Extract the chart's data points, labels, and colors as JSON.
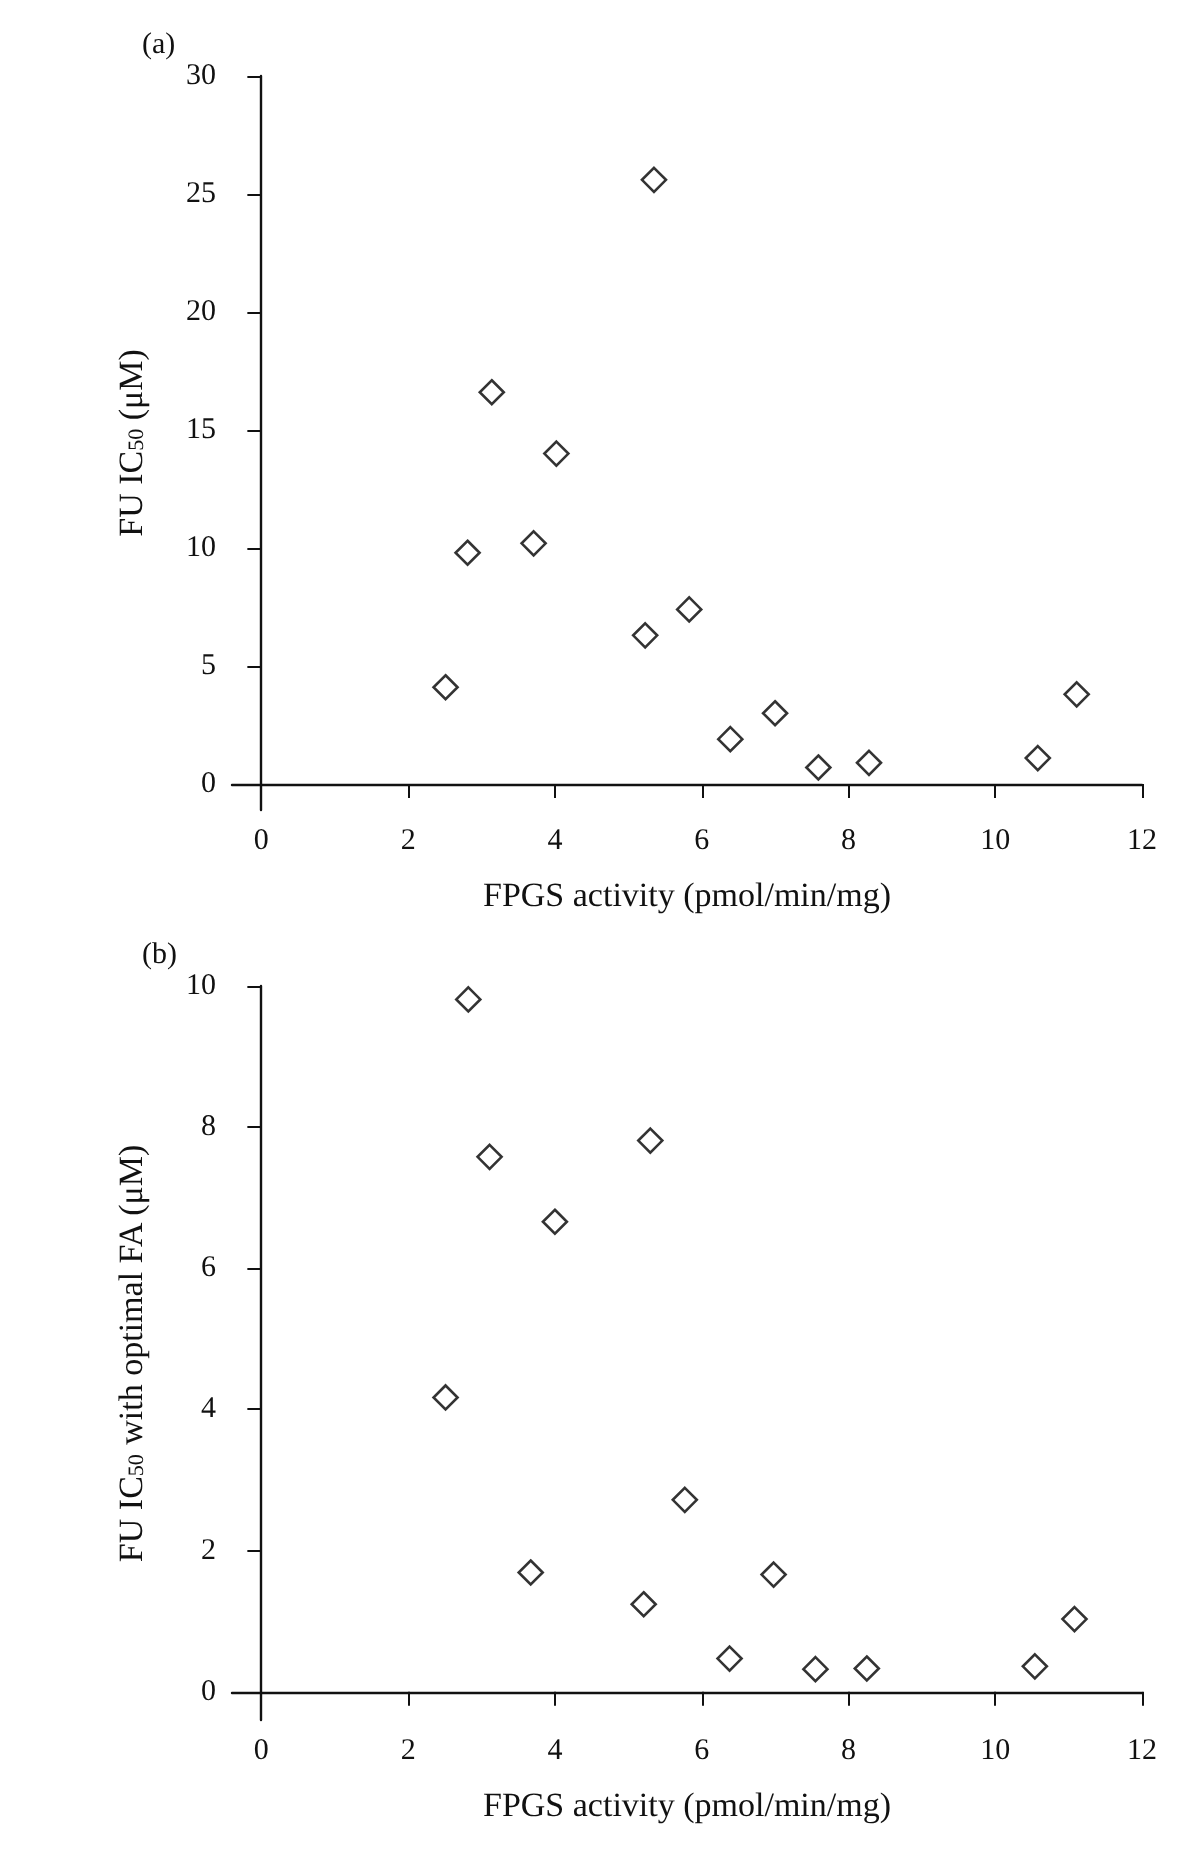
{
  "chart_data": [
    {
      "type": "scatter",
      "title": "(a)",
      "xlabel": "FPGS activity (pmol/min/mg)",
      "ylabel": "FU IC$_{50}$ (μM)",
      "marker": "diamond",
      "xlim": [
        -0.4,
        12
      ],
      "xticks": [
        0,
        2,
        4,
        6,
        8,
        10,
        12
      ],
      "ylim": [
        -1.1,
        30
      ],
      "yticks": [
        0,
        5,
        10,
        15,
        20,
        25,
        30
      ],
      "series": [
        {
          "color": "#000000",
          "x": [
            2.51,
            2.81,
            3.14,
            3.71,
            4.02,
            5.35,
            5.23,
            5.83,
            6.39,
            7.0,
            7.59,
            8.28,
            10.58,
            11.11
          ],
          "values": [
            4.1,
            9.8,
            16.6,
            10.2,
            14.0,
            25.6,
            6.3,
            7.4,
            1.9,
            3.0,
            0.7,
            0.9,
            1.1,
            3.8
          ]
        }
      ]
    },
    {
      "type": "scatter",
      "title": "(b)",
      "xlabel": "FPGS activity (pmol/min/mg)",
      "ylabel": "FU IC$_{50}$ with optimal FA (μM)",
      "marker": "diamond",
      "xlim": [
        -0.4,
        12
      ],
      "xticks": [
        0,
        2,
        4,
        6,
        8,
        10,
        12
      ],
      "ylim": [
        -0.4,
        10
      ],
      "yticks": [
        0,
        2,
        4,
        6,
        8,
        10
      ],
      "series": [
        {
          "color": "#000000",
          "x": [
            2.82,
            3.11,
            5.3,
            4.0,
            2.51,
            5.77,
            3.67,
            5.21,
            6.98,
            6.38,
            7.55,
            8.25,
            10.54,
            11.08
          ],
          "values": [
            9.81,
            7.58,
            7.81,
            6.66,
            4.17,
            2.72,
            1.69,
            1.24,
            1.66,
            0.47,
            0.32,
            0.33,
            0.36,
            1.03
          ]
        }
      ]
    }
  ]
}
